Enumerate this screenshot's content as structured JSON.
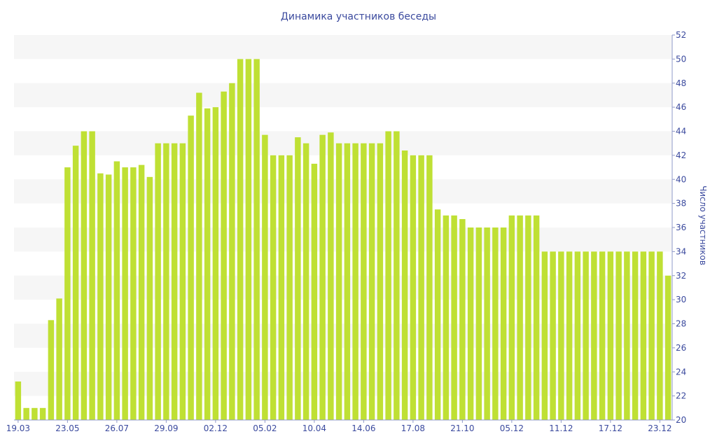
{
  "chart_data": {
    "type": "bar",
    "title": "Динамика участников беседы",
    "ylabel": "Число участников",
    "xlabel": "",
    "y_axis_side": "right",
    "ylim": [
      20,
      52
    ],
    "ytick_step": 2,
    "grid": "horizontal alternating bands",
    "colors": {
      "bar": "#bfe034",
      "band": "#f6f6f6",
      "text": "#3b4a9e",
      "axis": "#8f98c8"
    },
    "x_tick_labels": [
      {
        "index": 0,
        "label": "19.03"
      },
      {
        "index": 6,
        "label": "23.05"
      },
      {
        "index": 12,
        "label": "26.07"
      },
      {
        "index": 18,
        "label": "29.09"
      },
      {
        "index": 24,
        "label": "02.12"
      },
      {
        "index": 30,
        "label": "05.02"
      },
      {
        "index": 36,
        "label": "10.04"
      },
      {
        "index": 42,
        "label": "14.06"
      },
      {
        "index": 48,
        "label": "17.08"
      },
      {
        "index": 54,
        "label": "21.10"
      },
      {
        "index": 60,
        "label": "05.12"
      },
      {
        "index": 66,
        "label": "11.12"
      },
      {
        "index": 72,
        "label": "17.12"
      },
      {
        "index": 78,
        "label": "23.12"
      }
    ],
    "values": [
      23.2,
      21,
      21,
      21,
      28.3,
      30.1,
      41,
      42.8,
      44,
      44,
      40.5,
      40.4,
      41.5,
      41,
      41,
      41.2,
      40.2,
      43,
      43,
      43,
      43,
      45.3,
      47.2,
      45.9,
      46,
      47.3,
      48,
      50,
      50,
      50,
      43.7,
      42,
      42,
      42,
      43.5,
      43,
      41.3,
      43.7,
      43.9,
      43,
      43,
      43,
      43,
      43,
      43,
      44,
      44,
      42.4,
      42,
      42,
      42,
      37.5,
      37,
      37,
      36.7,
      36,
      36,
      36,
      36,
      36,
      37,
      37,
      37,
      37,
      34,
      34,
      34,
      34,
      34,
      34,
      34,
      34,
      34,
      34,
      34,
      34,
      34,
      34,
      34,
      32
    ]
  }
}
